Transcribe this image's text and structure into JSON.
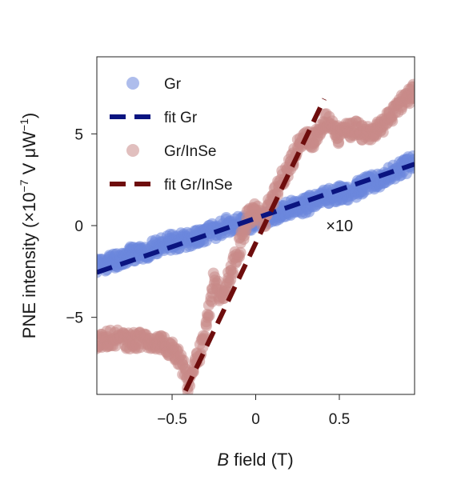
{
  "chart_data": {
    "type": "scatter",
    "xlabel_italic": "B",
    "xlabel_rest": " field (T)",
    "ylabel_main": "PNE intensity (×10",
    "ylabel_exp1": "−7",
    "ylabel_mid": " V μW",
    "ylabel_exp2": "−1",
    "ylabel_end": ")",
    "xlim": [
      -0.95,
      0.95
    ],
    "ylim": [
      -9.2,
      9.2
    ],
    "x_ticks": [
      {
        "value": -0.5,
        "label": "−0.5"
      },
      {
        "value": 0,
        "label": "0"
      },
      {
        "value": 0.5,
        "label": "0.5"
      }
    ],
    "y_ticks": [
      {
        "value": 5,
        "label": "5"
      },
      {
        "value": 0,
        "label": "0"
      },
      {
        "value": -5,
        "label": "−5"
      }
    ],
    "annotation": {
      "text": "×10",
      "x": 0.42,
      "y": 0.0
    },
    "legend_position": "top-left",
    "legend": [
      {
        "label": "Gr",
        "kind": "marker",
        "color": "#6b86dc"
      },
      {
        "label": "fit Gr",
        "kind": "dashed",
        "color": "#0a1480"
      },
      {
        "label": "Gr/InSe",
        "kind": "marker",
        "color": "#c98a88"
      },
      {
        "label": "fit Gr/InSe",
        "kind": "dashed",
        "color": "#6e0d0d"
      }
    ],
    "series": [
      {
        "name": "Gr",
        "color": "#6b86dc",
        "x": [
          -0.95,
          -0.85,
          -0.75,
          -0.65,
          -0.55,
          -0.45,
          -0.35,
          -0.25,
          -0.15,
          -0.05,
          0.05,
          0.15,
          0.25,
          0.35,
          0.45,
          0.55,
          0.65,
          0.75,
          0.85,
          0.95
        ],
        "y": [
          -2.2,
          -1.9,
          -1.6,
          -1.4,
          -1.0,
          -0.8,
          -0.6,
          -0.3,
          0.1,
          0.1,
          0.4,
          0.8,
          1.0,
          1.3,
          1.7,
          1.8,
          2.2,
          2.6,
          3.0,
          3.5
        ]
      },
      {
        "name": "fit Gr",
        "color": "#0a1480",
        "x": [
          -0.95,
          0.95
        ],
        "y": [
          -2.55,
          3.35
        ]
      },
      {
        "name": "Gr/InSe",
        "color": "#c98a88",
        "x": [
          -0.95,
          -0.85,
          -0.75,
          -0.65,
          -0.55,
          -0.45,
          -0.4,
          -0.3,
          -0.25,
          -0.2,
          -0.15,
          -0.1,
          -0.05,
          0.0,
          0.05,
          0.1,
          0.15,
          0.2,
          0.25,
          0.3,
          0.35,
          0.4,
          0.45,
          0.5,
          0.55,
          0.6,
          0.65,
          0.75,
          0.85,
          0.95
        ],
        "y": [
          -6.3,
          -6.1,
          -6.3,
          -6.2,
          -6.4,
          -7.2,
          -8.8,
          -5.8,
          -3.0,
          -4.0,
          -2.5,
          -1.2,
          0.4,
          0.8,
          0.3,
          1.5,
          2.5,
          3.2,
          4.3,
          4.8,
          4.6,
          5.6,
          5.7,
          4.9,
          5.2,
          5.3,
          5.0,
          5.3,
          6.5,
          7.3
        ]
      },
      {
        "name": "fit Gr/InSe",
        "color": "#6e0d0d",
        "x": [
          -0.42,
          0.41
        ],
        "y": [
          -9.0,
          6.9
        ]
      }
    ]
  }
}
